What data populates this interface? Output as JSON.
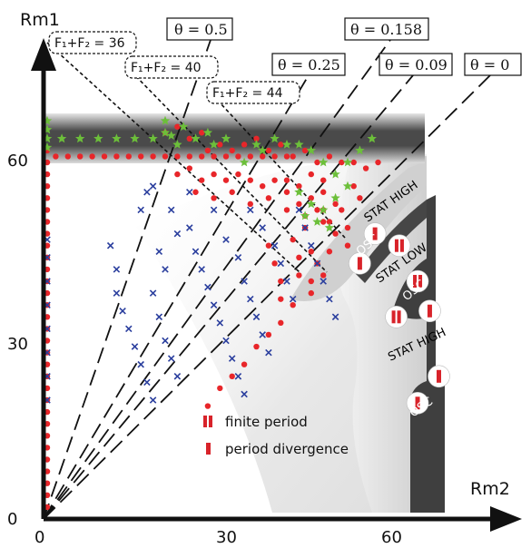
{
  "chart_data": {
    "type": "scatter",
    "xlabel": "Rm2",
    "ylabel": "Rm1",
    "xlim": [
      0,
      70
    ],
    "ylim": [
      0,
      70
    ],
    "x_ticks": [
      "0",
      "30",
      "60"
    ],
    "y_ticks": [
      "0",
      "30",
      "60"
    ],
    "x_tick_values": [
      0,
      30,
      60
    ],
    "y_tick_values": [
      0,
      30,
      60
    ],
    "colors": {
      "red": "#e8262a",
      "blue": "#2b3f9e",
      "green": "#6cbf3a",
      "dark": "#3d3d3d",
      "grey": "#d8d8d8"
    },
    "rays": [
      {
        "label": "θ = 0.5",
        "angle_deg": 71.0
      },
      {
        "label": "θ = 0.25",
        "angle_deg": 60.5
      },
      {
        "label": "θ = 0.158",
        "angle_deg": 52.0
      },
      {
        "label": "θ = 0.09",
        "angle_deg": 46.5
      },
      {
        "label": "θ = 0",
        "angle_deg": 41.0
      }
    ],
    "flux_lines": [
      {
        "label": "F₁+F₂ = 36",
        "sum": 72
      },
      {
        "label": "F₁+F₂ = 40",
        "sum": 84
      },
      {
        "label": "F₁+F₂ = 44",
        "sum": 96
      }
    ],
    "region_labels": [
      {
        "text": "STAT HIGH",
        "color": "#111111"
      },
      {
        "text": "OSC",
        "color": "#ffffff"
      },
      {
        "text": "STAT LOW",
        "color": "#111111"
      },
      {
        "text": "OSC",
        "color": "#ffffff"
      },
      {
        "text": "STAT HIGH",
        "color": "#111111"
      },
      {
        "text": "OSC",
        "color": "#ffffff"
      }
    ],
    "legend": [
      {
        "marker": "double-bar",
        "label": "finite period"
      },
      {
        "marker": "single-bar",
        "label": "period divergence"
      }
    ],
    "period_markers": [
      {
        "x": 54.5,
        "y": 48,
        "type": "single"
      },
      {
        "x": 58.5,
        "y": 46,
        "type": "double"
      },
      {
        "x": 52,
        "y": 43,
        "type": "single"
      },
      {
        "x": 61.5,
        "y": 40,
        "type": "double"
      },
      {
        "x": 58,
        "y": 34,
        "type": "double"
      },
      {
        "x": 63.5,
        "y": 35,
        "type": "single"
      },
      {
        "x": 65,
        "y": 24,
        "type": "single"
      },
      {
        "x": 61.5,
        "y": 19.5,
        "type": "single"
      }
    ],
    "series": [
      {
        "marker": "circle",
        "color": "#e8262a",
        "points": [
          [
            0.6,
            62
          ],
          [
            0.6,
            60
          ],
          [
            0.6,
            58
          ],
          [
            0.6,
            56
          ],
          [
            0.6,
            54
          ],
          [
            0.6,
            52
          ],
          [
            0.6,
            50
          ],
          [
            0.6,
            48
          ],
          [
            0.6,
            46
          ],
          [
            0.6,
            44
          ],
          [
            0.6,
            42
          ],
          [
            0.6,
            40
          ],
          [
            0.6,
            38
          ],
          [
            0.6,
            36
          ],
          [
            0.6,
            34
          ],
          [
            0.6,
            32
          ],
          [
            0.6,
            30
          ],
          [
            0.6,
            28
          ],
          [
            0.6,
            26
          ],
          [
            0.6,
            24
          ],
          [
            0.6,
            22
          ],
          [
            0.6,
            20
          ],
          [
            0.6,
            18
          ],
          [
            0.6,
            16
          ],
          [
            0.6,
            14
          ],
          [
            0.6,
            12
          ],
          [
            0.6,
            10
          ],
          [
            0.6,
            8
          ],
          [
            0.6,
            6
          ],
          [
            0.6,
            4
          ],
          [
            0.6,
            2
          ],
          [
            2,
            61
          ],
          [
            4,
            61
          ],
          [
            6,
            61
          ],
          [
            8,
            61
          ],
          [
            10,
            61
          ],
          [
            12,
            61
          ],
          [
            14,
            61
          ],
          [
            16,
            61
          ],
          [
            18,
            61
          ],
          [
            20,
            61
          ],
          [
            22,
            61
          ],
          [
            24,
            61
          ],
          [
            26,
            61
          ],
          [
            28,
            61
          ],
          [
            30,
            61
          ],
          [
            32,
            61
          ],
          [
            34,
            61
          ],
          [
            36,
            61
          ],
          [
            38,
            61
          ],
          [
            40,
            61
          ],
          [
            20,
            65
          ],
          [
            22,
            66
          ],
          [
            24,
            64
          ],
          [
            26,
            65
          ],
          [
            27,
            62
          ],
          [
            29,
            63
          ],
          [
            31,
            62
          ],
          [
            33,
            63
          ],
          [
            35,
            64
          ],
          [
            37,
            62
          ],
          [
            39,
            63
          ],
          [
            41,
            61
          ],
          [
            43,
            62
          ],
          [
            45,
            60
          ],
          [
            47,
            61
          ],
          [
            49,
            60
          ],
          [
            51,
            60
          ],
          [
            53,
            59
          ],
          [
            55,
            60
          ],
          [
            22,
            58
          ],
          [
            24,
            59
          ],
          [
            26,
            57
          ],
          [
            28,
            58
          ],
          [
            30,
            57
          ],
          [
            32,
            58
          ],
          [
            34,
            57
          ],
          [
            36,
            56
          ],
          [
            38,
            57
          ],
          [
            40,
            55
          ],
          [
            42,
            56
          ],
          [
            44,
            54
          ],
          [
            46,
            55
          ],
          [
            48,
            53
          ],
          [
            25,
            55
          ],
          [
            28,
            54
          ],
          [
            31,
            55
          ],
          [
            34,
            53
          ],
          [
            37,
            54
          ],
          [
            40,
            52
          ],
          [
            43,
            51
          ],
          [
            46,
            50
          ],
          [
            40,
            57
          ],
          [
            42,
            53
          ],
          [
            44,
            58
          ],
          [
            46,
            57
          ],
          [
            45,
            52
          ],
          [
            47,
            50
          ],
          [
            49,
            52
          ],
          [
            48,
            48
          ],
          [
            50,
            49
          ],
          [
            51,
            56
          ],
          [
            52,
            54
          ],
          [
            50,
            46
          ],
          [
            37,
            46
          ],
          [
            38,
            43
          ],
          [
            39,
            40
          ],
          [
            39,
            37
          ],
          [
            41,
            47
          ],
          [
            42,
            44
          ],
          [
            43,
            49
          ],
          [
            44,
            45
          ],
          [
            42,
            41
          ],
          [
            45,
            43
          ],
          [
            46,
            41
          ],
          [
            47,
            45
          ],
          [
            44,
            38
          ],
          [
            46,
            52
          ],
          [
            44,
            40
          ],
          [
            41,
            36
          ],
          [
            39,
            33
          ],
          [
            37,
            31
          ],
          [
            35,
            29
          ],
          [
            33,
            26
          ],
          [
            31,
            24
          ],
          [
            29,
            22
          ],
          [
            27,
            19
          ]
        ]
      },
      {
        "marker": "x",
        "color": "#2b3f9e",
        "points": [
          [
            0.6,
            47
          ],
          [
            0.6,
            44
          ],
          [
            0.6,
            40
          ],
          [
            0.6,
            36
          ],
          [
            0.6,
            32
          ],
          [
            0.6,
            28
          ],
          [
            0.6,
            24
          ],
          [
            0.6,
            20
          ],
          [
            11,
            46
          ],
          [
            12,
            42
          ],
          [
            12,
            38
          ],
          [
            13,
            35
          ],
          [
            14,
            32
          ],
          [
            15,
            29
          ],
          [
            16,
            26
          ],
          [
            17,
            23
          ],
          [
            18,
            20
          ],
          [
            19,
            45
          ],
          [
            20,
            42
          ],
          [
            18,
            38
          ],
          [
            19,
            34
          ],
          [
            20,
            30
          ],
          [
            21,
            27
          ],
          [
            22,
            24
          ],
          [
            16,
            52
          ],
          [
            17,
            55
          ],
          [
            18,
            56
          ],
          [
            21,
            52
          ],
          [
            22,
            48
          ],
          [
            24,
            49
          ],
          [
            25,
            45
          ],
          [
            26,
            42
          ],
          [
            27,
            39
          ],
          [
            28,
            36
          ],
          [
            29,
            33
          ],
          [
            30,
            30
          ],
          [
            31,
            27
          ],
          [
            32,
            24
          ],
          [
            33,
            21
          ],
          [
            24,
            55
          ],
          [
            28,
            52
          ],
          [
            30,
            47
          ],
          [
            32,
            44
          ],
          [
            33,
            40
          ],
          [
            34,
            37
          ],
          [
            35,
            34
          ],
          [
            36,
            31
          ],
          [
            37,
            28
          ],
          [
            34,
            52
          ],
          [
            36,
            49
          ],
          [
            38,
            46
          ],
          [
            39,
            43
          ],
          [
            40,
            40
          ],
          [
            41,
            37
          ],
          [
            42,
            52
          ],
          [
            43,
            49
          ],
          [
            44,
            46
          ],
          [
            45,
            43
          ],
          [
            46,
            40
          ],
          [
            47,
            37
          ],
          [
            48,
            34
          ]
        ]
      },
      {
        "marker": "star",
        "color": "#6cbf3a",
        "points": [
          [
            0.6,
            67
          ],
          [
            0.6,
            65.5
          ],
          [
            0.6,
            64
          ],
          [
            0.6,
            62.5
          ],
          [
            3,
            64
          ],
          [
            6,
            64
          ],
          [
            9,
            64
          ],
          [
            12,
            64
          ],
          [
            15,
            64
          ],
          [
            18,
            64
          ],
          [
            20,
            65
          ],
          [
            20,
            67
          ],
          [
            21,
            64.5
          ],
          [
            22,
            63
          ],
          [
            23,
            66
          ],
          [
            25,
            64
          ],
          [
            27,
            65
          ],
          [
            28,
            63
          ],
          [
            30,
            64
          ],
          [
            33,
            60
          ],
          [
            35,
            63
          ],
          [
            36,
            62
          ],
          [
            38,
            64
          ],
          [
            40,
            63
          ],
          [
            42,
            63
          ],
          [
            44,
            62
          ],
          [
            46,
            60
          ],
          [
            48,
            58
          ],
          [
            50,
            60
          ],
          [
            52,
            62
          ],
          [
            54,
            64
          ],
          [
            42,
            55
          ],
          [
            44,
            53
          ],
          [
            46,
            52
          ],
          [
            48,
            54
          ],
          [
            50,
            56
          ],
          [
            45,
            50
          ],
          [
            47,
            49
          ],
          [
            43,
            51
          ]
        ]
      }
    ]
  }
}
